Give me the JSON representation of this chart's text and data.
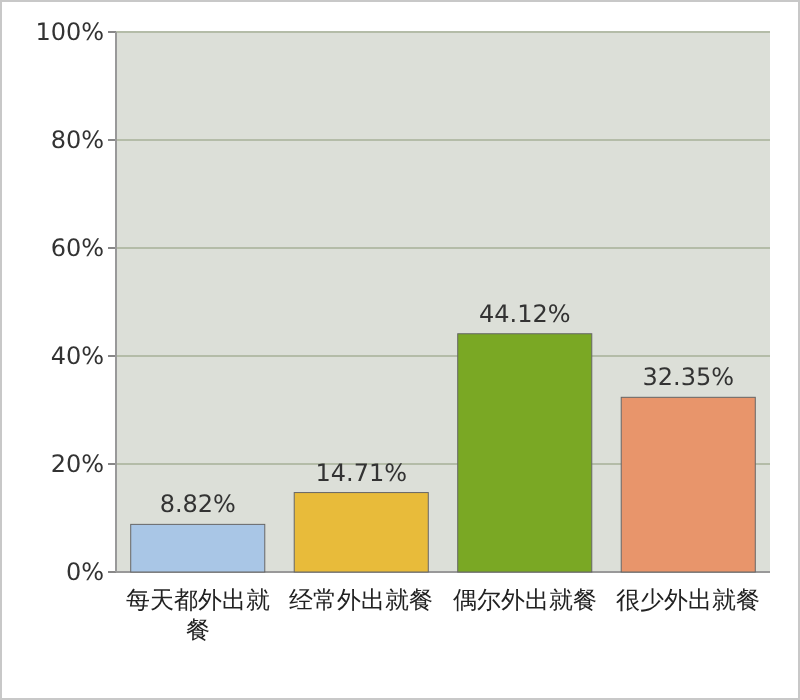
{
  "chart_data": {
    "type": "bar",
    "categories": [
      "每天都外出就餐",
      "经常外出就餐",
      "偶尔外出就餐",
      "很少外出就餐"
    ],
    "values": [
      8.82,
      14.71,
      44.12,
      32.35
    ],
    "colors": [
      "#a9c6e6",
      "#e8bb3a",
      "#7aa824",
      "#e8956b"
    ],
    "value_labels": [
      "8.82%",
      "14.71%",
      "44.12%",
      "32.35%"
    ],
    "ylim": [
      0,
      100
    ],
    "yticks": [
      {
        "value": 0,
        "label": "0%"
      },
      {
        "value": 20,
        "label": "20%"
      },
      {
        "value": 40,
        "label": "40%"
      },
      {
        "value": 60,
        "label": "60%"
      },
      {
        "value": 80,
        "label": "80%"
      },
      {
        "value": 100,
        "label": "100%"
      }
    ],
    "grid": "y"
  }
}
